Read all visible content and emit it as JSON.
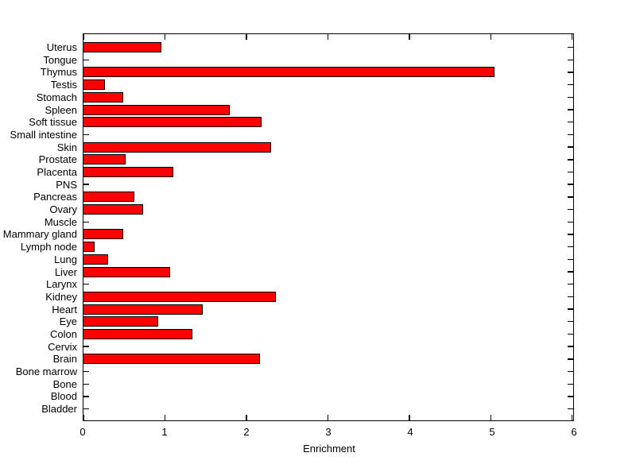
{
  "figure": {
    "background": "#FFFFFF"
  },
  "chart_data": {
    "type": "bar",
    "orientation": "horizontal",
    "title": "",
    "xlabel": "Enrichment",
    "ylabel": "",
    "xlim": [
      0,
      6
    ],
    "xticks": [
      "0",
      "1",
      "2",
      "3",
      "4",
      "5",
      "6"
    ],
    "grid": false,
    "legend": null,
    "bar_color": "#FF0000",
    "bar_edge_color": "#000000",
    "axis_color": "#000000",
    "categories": [
      "Uterus",
      "Tongue",
      "Thymus",
      "Testis",
      "Stomach",
      "Spleen",
      "Soft tissue",
      "Small intestine",
      "Skin",
      "Prostate",
      "Placenta",
      "PNS",
      "Pancreas",
      "Ovary",
      "Muscle",
      "Mammary gland",
      "Lymph node",
      "Lung",
      "Liver",
      "Larynx",
      "Kidney",
      "Heart",
      "Eye",
      "Colon",
      "Cervix",
      "Brain",
      "Bone marrow",
      "Bone",
      "Blood",
      "Bladder"
    ],
    "values": [
      0.96,
      0,
      5.04,
      0.26,
      0.49,
      1.79,
      2.18,
      0,
      2.3,
      0.52,
      1.1,
      0,
      0.62,
      0.73,
      0,
      0.49,
      0.14,
      0.3,
      1.06,
      0,
      2.36,
      1.46,
      0.92,
      1.34,
      0,
      2.17,
      0,
      0,
      0,
      0
    ]
  }
}
